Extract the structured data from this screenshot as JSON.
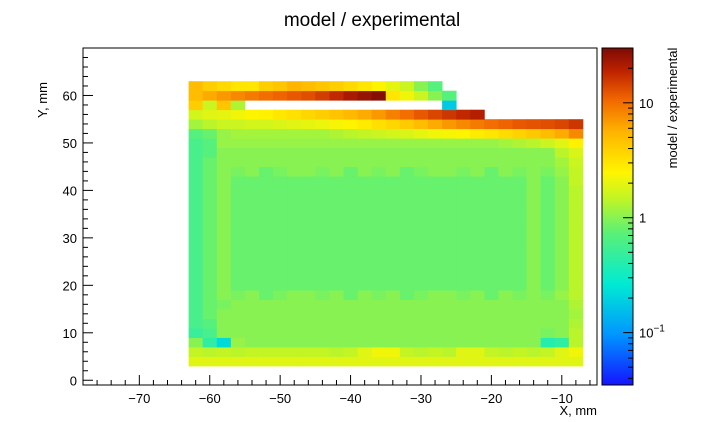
{
  "chart_data": {
    "type": "heatmap",
    "title": "model / experimental",
    "xlabel": "X, mm",
    "ylabel": "Y, mm",
    "zlabel": "model / experimental",
    "xlim": [
      -78,
      -5
    ],
    "ylim": [
      -1,
      70
    ],
    "x_ticks": [
      -70,
      -60,
      -50,
      -40,
      -30,
      -20,
      -10
    ],
    "y_ticks": [
      0,
      10,
      20,
      30,
      40,
      50,
      60
    ],
    "z_scale": "log",
    "z_range": [
      0.035,
      30
    ],
    "z_ticks": [
      {
        "value": 0.1,
        "base": "10",
        "exp": "−1"
      },
      {
        "value": 1,
        "label": "1"
      },
      {
        "value": 10,
        "label": "10"
      }
    ],
    "colormap": "rainbow",
    "bin_width": 2,
    "x_bins_lo": -63,
    "y_bins_lo": 3,
    "grid": false,
    "legend": "colorbar-right",
    "cells": [
      [
        1.9,
        1.9,
        1.9,
        1.9,
        1.9,
        1.9,
        1.9,
        1.9,
        1.9,
        1.9,
        1.9,
        1.9,
        1.9,
        1.9,
        1.9,
        1.9,
        1.9,
        1.9,
        1.9,
        1.9,
        1.9,
        1.9,
        1.9,
        1.9,
        1.9,
        1.9,
        1.9,
        1.9
      ],
      [
        1.5,
        1.4,
        1.5,
        1.4,
        1.5,
        1.5,
        1.5,
        1.5,
        1.5,
        1.5,
        1.4,
        1.5,
        1.9,
        2.2,
        2.2,
        1.5,
        1.4,
        1.5,
        1.4,
        1.9,
        1.9,
        1.5,
        1.4,
        1.5,
        1.4,
        1.5,
        1.9,
        2.2
      ],
      [
        1,
        0.45,
        0.22,
        1.1,
        1,
        1,
        1,
        1,
        1,
        1,
        1,
        1,
        1,
        1,
        1,
        1,
        1,
        1,
        1,
        1,
        1,
        1,
        1,
        1,
        1,
        0.4,
        0.45,
        1.4
      ],
      [
        0.5,
        0.6,
        1,
        1,
        1,
        1,
        1,
        1,
        1,
        1,
        1,
        1,
        1,
        1,
        1,
        1,
        1,
        1,
        1,
        1,
        1,
        1,
        1,
        1,
        1,
        0.9,
        1,
        1.4
      ],
      [
        0.6,
        0.7,
        1,
        1,
        1,
        1,
        1,
        1,
        1,
        1,
        1,
        1,
        1,
        1,
        1,
        1,
        1,
        1,
        1,
        1,
        1,
        1,
        1,
        1,
        1,
        1,
        1,
        1.3
      ],
      [
        0.6,
        0.8,
        1,
        1,
        1,
        1,
        1,
        1,
        1,
        1,
        1,
        1,
        1,
        1,
        1,
        1,
        1,
        1,
        1,
        1,
        1,
        1,
        1,
        1,
        1,
        1,
        1,
        1.2
      ],
      [
        0.6,
        0.8,
        0.9,
        1,
        1,
        1,
        1,
        1,
        1,
        1,
        1,
        1,
        1,
        1,
        1,
        1,
        1,
        1,
        1,
        1,
        1,
        1,
        1,
        1,
        1,
        1,
        1,
        1.3
      ],
      [
        0.6,
        0.8,
        1,
        0.9,
        1,
        0.8,
        0.9,
        1,
        1,
        0.9,
        1,
        0.8,
        1,
        0.9,
        1,
        0.8,
        0.9,
        1,
        1,
        0.9,
        1,
        0.8,
        1,
        0.9,
        1,
        0.9,
        1.1,
        1.4
      ],
      [
        0.6,
        0.8,
        1,
        0.8,
        0.8,
        0.8,
        0.8,
        0.8,
        0.8,
        0.8,
        0.8,
        0.8,
        0.8,
        0.8,
        0.8,
        0.8,
        0.8,
        0.8,
        0.8,
        0.8,
        0.8,
        0.8,
        0.8,
        0.8,
        1,
        0.8,
        1,
        1.4
      ],
      [
        0.6,
        0.8,
        1,
        0.8,
        0.8,
        0.8,
        0.8,
        0.8,
        0.8,
        0.8,
        0.8,
        0.8,
        0.8,
        0.8,
        0.8,
        0.8,
        0.8,
        0.8,
        0.8,
        0.8,
        0.8,
        0.8,
        0.8,
        0.8,
        1,
        0.8,
        1,
        1.4
      ],
      [
        0.6,
        0.8,
        1,
        0.8,
        0.8,
        0.8,
        0.8,
        0.8,
        0.8,
        0.8,
        0.8,
        0.8,
        0.8,
        0.8,
        0.8,
        0.8,
        0.8,
        0.8,
        0.8,
        0.8,
        0.8,
        0.8,
        0.8,
        0.8,
        1,
        0.8,
        1,
        1.4
      ],
      [
        0.6,
        0.8,
        1,
        0.8,
        0.8,
        0.8,
        0.8,
        0.8,
        0.8,
        0.8,
        0.8,
        0.8,
        0.8,
        0.8,
        0.8,
        0.8,
        0.8,
        0.8,
        0.8,
        0.8,
        0.8,
        0.8,
        0.8,
        0.8,
        1,
        0.8,
        1,
        1.4
      ],
      [
        0.6,
        0.8,
        1,
        0.8,
        0.8,
        0.8,
        0.8,
        0.8,
        0.8,
        0.8,
        0.8,
        0.8,
        0.8,
        0.8,
        0.8,
        0.8,
        0.8,
        0.8,
        0.8,
        0.8,
        0.8,
        0.8,
        0.8,
        0.8,
        1,
        0.8,
        1,
        1.4
      ],
      [
        0.6,
        0.8,
        1,
        0.8,
        0.8,
        0.8,
        0.8,
        0.8,
        0.8,
        0.8,
        0.8,
        0.8,
        0.8,
        0.8,
        0.8,
        0.8,
        0.8,
        0.8,
        0.8,
        0.8,
        0.8,
        0.8,
        0.8,
        0.8,
        1,
        0.8,
        1,
        1.4
      ],
      [
        0.6,
        0.8,
        1,
        0.8,
        0.8,
        0.8,
        0.8,
        0.8,
        0.8,
        0.8,
        0.8,
        0.8,
        0.8,
        0.8,
        0.8,
        0.8,
        0.8,
        0.8,
        0.8,
        0.8,
        0.8,
        0.8,
        0.8,
        0.8,
        1,
        0.8,
        1,
        1.4
      ],
      [
        0.6,
        0.8,
        1,
        0.8,
        0.8,
        0.8,
        0.8,
        0.8,
        0.8,
        0.8,
        0.8,
        0.8,
        0.8,
        0.8,
        0.8,
        0.8,
        0.8,
        0.8,
        0.8,
        0.8,
        0.8,
        0.8,
        0.8,
        0.8,
        1,
        0.8,
        1,
        1.4
      ],
      [
        0.6,
        0.8,
        1,
        0.8,
        0.8,
        0.8,
        0.8,
        0.8,
        0.8,
        0.8,
        0.8,
        0.8,
        0.8,
        0.8,
        0.8,
        0.8,
        0.8,
        0.8,
        0.8,
        0.8,
        0.8,
        0.8,
        0.8,
        0.8,
        1,
        0.8,
        1,
        1.4
      ],
      [
        0.6,
        0.8,
        1,
        0.8,
        0.8,
        0.8,
        0.8,
        0.8,
        0.8,
        0.8,
        0.8,
        0.8,
        0.8,
        0.8,
        0.8,
        0.8,
        0.8,
        0.8,
        0.8,
        0.8,
        0.8,
        0.8,
        0.8,
        0.8,
        1,
        0.8,
        1,
        1.4
      ],
      [
        0.6,
        0.8,
        1,
        0.8,
        0.8,
        0.8,
        0.8,
        0.8,
        0.8,
        0.8,
        0.8,
        0.8,
        0.8,
        0.8,
        0.8,
        0.8,
        0.8,
        0.8,
        0.8,
        0.8,
        0.8,
        0.8,
        0.8,
        0.8,
        1,
        0.8,
        1,
        1.4
      ],
      [
        0.6,
        0.8,
        1,
        0.8,
        0.8,
        0.8,
        0.8,
        0.8,
        0.8,
        0.8,
        0.8,
        0.8,
        0.8,
        0.8,
        0.8,
        0.8,
        0.8,
        0.8,
        0.8,
        0.8,
        0.8,
        0.8,
        0.8,
        0.8,
        1,
        0.8,
        1,
        1.5
      ],
      [
        0.6,
        0.8,
        1,
        0.9,
        1,
        0.8,
        0.9,
        1,
        1,
        0.9,
        1,
        0.8,
        1,
        0.9,
        1,
        0.8,
        0.9,
        1,
        1,
        0.9,
        1,
        0.8,
        1,
        0.9,
        1,
        0.9,
        1.1,
        1.5
      ],
      [
        0.6,
        0.8,
        1,
        1,
        1,
        1,
        1,
        1,
        1,
        1,
        1,
        1,
        1,
        1,
        1,
        1,
        1,
        1,
        1,
        1,
        1,
        1,
        1,
        1,
        1,
        1,
        1.2,
        1.6
      ],
      [
        0.6,
        0.7,
        1,
        1,
        1,
        1,
        1,
        1,
        1,
        1,
        1,
        1,
        1,
        1,
        1,
        1,
        1,
        1,
        1,
        1,
        1,
        1,
        1,
        1,
        1,
        1,
        1.4,
        1.8
      ],
      [
        0.6,
        0.7,
        1.1,
        1.1,
        1.1,
        1.1,
        1.1,
        1.1,
        1.1,
        1.1,
        1.1,
        1.1,
        1.1,
        1.1,
        1.1,
        1.1,
        1.1,
        1.1,
        1.1,
        1.1,
        1.1,
        1.1,
        1.2,
        1.3,
        1.4,
        1.6,
        1.9,
        2.6
      ],
      [
        0.7,
        0.8,
        1.1,
        1.2,
        1.2,
        1.2,
        1.2,
        1.2,
        1.2,
        1.2,
        1.3,
        1.4,
        1.5,
        1.6,
        1.7,
        1.8,
        2,
        2.2,
        2.3,
        2.5,
        2.8,
        3,
        3.4,
        3.8,
        4.3,
        5,
        6,
        8
      ],
      [
        1.2,
        1.4,
        1.6,
        1.6,
        1.7,
        1.7,
        1.8,
        1.9,
        2,
        2.1,
        2.3,
        2.5,
        2.8,
        3.2,
        3.6,
        4.2,
        5,
        6,
        7,
        8,
        9,
        10,
        11,
        12,
        12.5,
        13,
        14,
        16
      ],
      [
        1.7,
        1.9,
        2,
        2.2,
        2.4,
        2.6,
        2.9,
        3.2,
        3.6,
        4,
        4.6,
        5.2,
        6,
        7,
        8.5,
        10,
        12,
        14,
        16,
        18,
        20,
        null,
        null,
        null,
        null,
        null,
        null,
        null
      ],
      [
        4,
        1.6,
        4.5,
        1.3,
        null,
        null,
        null,
        null,
        null,
        null,
        null,
        null,
        null,
        null,
        null,
        null,
        null,
        null,
        0.18,
        null,
        null,
        null,
        null,
        null,
        null,
        null,
        null,
        null
      ],
      [
        5,
        6,
        7,
        8,
        9,
        10,
        11,
        12,
        13,
        15,
        18,
        22,
        25,
        28,
        3,
        2.2,
        1.6,
        1,
        0.7,
        null,
        null,
        null,
        null,
        null,
        null,
        null,
        null,
        null
      ],
      [
        5,
        4,
        3.5,
        3,
        3,
        4,
        4.5,
        5.5,
        5,
        4.5,
        4,
        3.5,
        3,
        2.5,
        2,
        1.6,
        1,
        0.7,
        null,
        null,
        null,
        null,
        null,
        null,
        null,
        null,
        null,
        null
      ]
    ]
  }
}
